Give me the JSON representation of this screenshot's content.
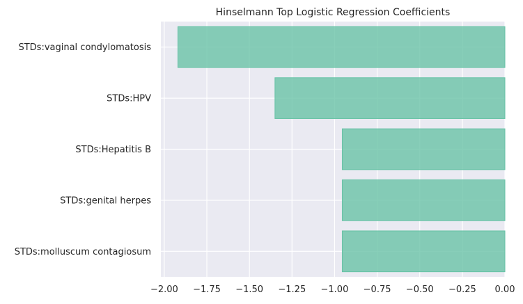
{
  "chart_data": {
    "type": "bar",
    "orientation": "horizontal",
    "title": "Hinselmann Top Logistic Regression Coefficients",
    "xlabel": "",
    "ylabel": "",
    "categories": [
      "STDs:vaginal condylomatosis",
      "STDs:HPV",
      "STDs:Hepatitis B",
      "STDs:genital herpes",
      "STDs:molluscum contagiosum"
    ],
    "values": [
      -1.92,
      -1.35,
      -0.955,
      -0.955,
      -0.955
    ],
    "xlim": [
      -2.02,
      0.0
    ],
    "xticks": [
      -2.0,
      -1.75,
      -1.5,
      -1.25,
      -1.0,
      -0.75,
      -0.5,
      -0.25,
      0.0
    ],
    "xtick_labels": [
      "−2.00",
      "−1.75",
      "−1.50",
      "−1.25",
      "−1.00",
      "−0.75",
      "−0.50",
      "−0.25",
      "0.00"
    ],
    "grid": true,
    "colors": {
      "background": "#eaeaf2",
      "grid": "#ffffff",
      "bar_fill": "#66c2a5",
      "bar_edge": "#66c2a5"
    }
  }
}
